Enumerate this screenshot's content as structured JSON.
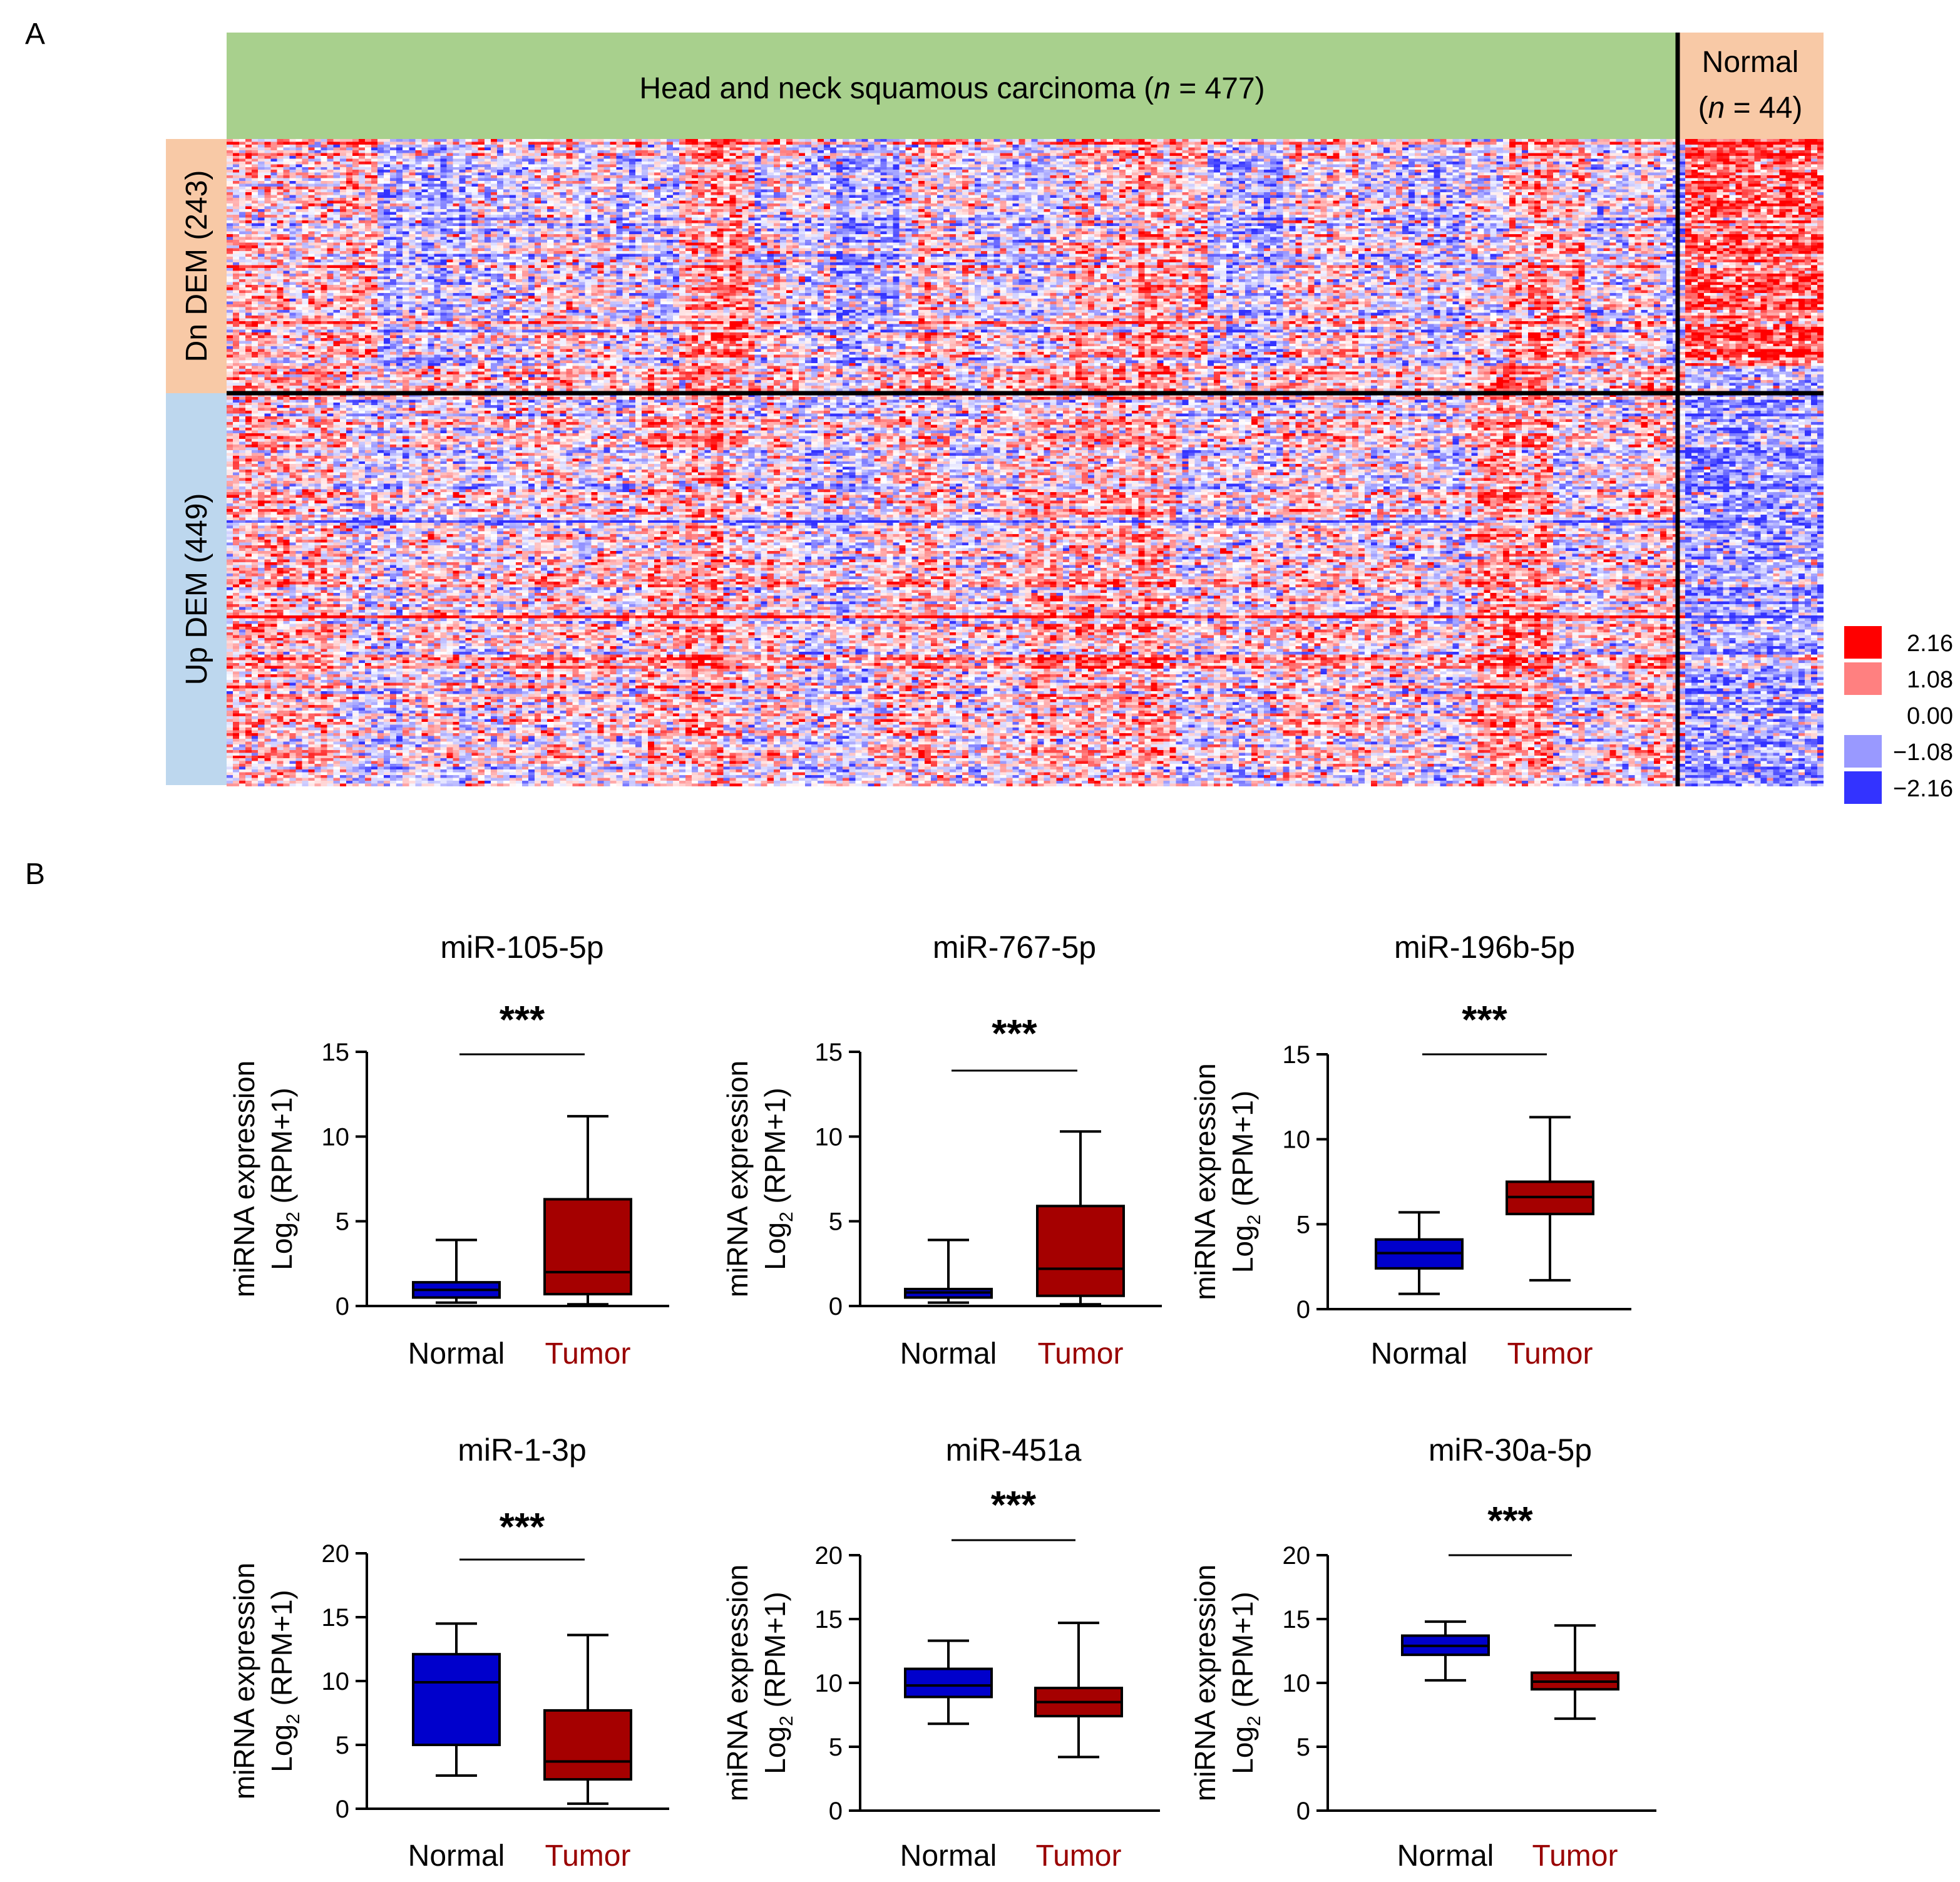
{
  "colors": {
    "tumor_band": "#a8d08d",
    "normal_band": "#f8c9a6",
    "dn_band": "#f8c9a6",
    "up_band": "#bdd7ee",
    "high": "#ff0000",
    "mid_high": "#ff8080",
    "zero": "#ffffff",
    "mid_low": "#9999ff",
    "low": "#3333ff",
    "box_normal": "#0000cc",
    "box_tumor": "#a50000",
    "tumor_label": "#990000",
    "divider": "#000000"
  },
  "panels": {
    "a_label": "A",
    "b_label": "B"
  },
  "chart_data": [
    {
      "type": "heatmap",
      "panel": "A",
      "groups": [
        {
          "name": "Head and neck squamous carcinoma",
          "n_prefix": "n",
          "n_value": "= 477"
        },
        {
          "name": "Normal",
          "n_prefix": "n",
          "n_value": "= 44"
        }
      ],
      "row_groups": [
        {
          "label": "Dn DEM (243)",
          "count": 243
        },
        {
          "label": "Up DEM (449)",
          "count": 449
        }
      ],
      "legend": {
        "values": [
          "2.16",
          "1.08",
          "0.00",
          "−1.08",
          "−2.16"
        ],
        "range": [
          -2.16,
          2.16
        ]
      }
    },
    {
      "type": "box",
      "panel": "B",
      "title": "miR-105-5p",
      "significance": "***",
      "ylabel_line1": "miRNA expression",
      "ylabel_pre": "Log",
      "ylabel_sub": "2",
      "ylabel_post": " (RPM+1)",
      "yticks": [
        0,
        5,
        10,
        15
      ],
      "ylim": [
        0,
        15
      ],
      "categories": [
        "Normal",
        "Tumor"
      ],
      "boxes": [
        {
          "name": "Normal",
          "min": 0.2,
          "q1": 0.5,
          "median": 0.95,
          "q3": 1.4,
          "max": 3.9
        },
        {
          "name": "Tumor",
          "min": 0.1,
          "q1": 0.7,
          "median": 2.0,
          "q3": 6.3,
          "max": 11.2
        }
      ]
    },
    {
      "type": "box",
      "panel": "B",
      "title": "miR-767-5p",
      "significance": "***",
      "ylabel_line1": "miRNA expression",
      "ylabel_pre": "Log",
      "ylabel_sub": "2",
      "ylabel_post": " (RPM+1)",
      "yticks": [
        0,
        5,
        10,
        15
      ],
      "ylim": [
        0,
        15
      ],
      "categories": [
        "Normal",
        "Tumor"
      ],
      "boxes": [
        {
          "name": "Normal",
          "min": 0.2,
          "q1": 0.5,
          "median": 0.8,
          "q3": 1.0,
          "max": 3.9
        },
        {
          "name": "Tumor",
          "min": 0.1,
          "q1": 0.6,
          "median": 2.2,
          "q3": 5.9,
          "max": 10.3
        }
      ]
    },
    {
      "type": "box",
      "panel": "B",
      "title": "miR-196b-5p",
      "significance": "***",
      "ylabel_line1": "miRNA expression",
      "ylabel_pre": "Log",
      "ylabel_sub": "2",
      "ylabel_post": " (RPM+1)",
      "yticks": [
        0,
        5,
        10,
        15
      ],
      "ylim": [
        0,
        15
      ],
      "categories": [
        "Normal",
        "Tumor"
      ],
      "boxes": [
        {
          "name": "Normal",
          "min": 0.9,
          "q1": 2.4,
          "median": 3.3,
          "q3": 4.1,
          "max": 5.7
        },
        {
          "name": "Tumor",
          "min": 1.7,
          "q1": 5.6,
          "median": 6.6,
          "q3": 7.5,
          "max": 11.3
        }
      ]
    },
    {
      "type": "box",
      "panel": "B",
      "title": "miR-1-3p",
      "significance": "***",
      "ylabel_line1": "miRNA expression",
      "ylabel_pre": "Log",
      "ylabel_sub": "2",
      "ylabel_post": " (RPM+1)",
      "yticks": [
        0,
        5,
        10,
        15,
        20
      ],
      "ylim": [
        0,
        20
      ],
      "categories": [
        "Normal",
        "Tumor"
      ],
      "boxes": [
        {
          "name": "Normal",
          "min": 2.6,
          "q1": 5.0,
          "median": 9.9,
          "q3": 12.1,
          "max": 14.5
        },
        {
          "name": "Tumor",
          "min": 0.4,
          "q1": 2.3,
          "median": 3.7,
          "q3": 7.7,
          "max": 13.6
        }
      ]
    },
    {
      "type": "box",
      "panel": "B",
      "title": "miR-451a",
      "significance": "***",
      "ylabel_line1": "miRNA expression",
      "ylabel_pre": "Log",
      "ylabel_sub": "2",
      "ylabel_post": " (RPM+1)",
      "yticks": [
        0,
        5,
        10,
        15,
        20
      ],
      "ylim": [
        0,
        20
      ],
      "categories": [
        "Normal",
        "Tumor"
      ],
      "boxes": [
        {
          "name": "Normal",
          "min": 6.8,
          "q1": 8.9,
          "median": 9.8,
          "q3": 11.1,
          "max": 13.3
        },
        {
          "name": "Tumor",
          "min": 4.2,
          "q1": 7.4,
          "median": 8.5,
          "q3": 9.6,
          "max": 14.7
        }
      ]
    },
    {
      "type": "box",
      "panel": "B",
      "title": "miR-30a-5p",
      "significance": "***",
      "ylabel_line1": "miRNA expression",
      "ylabel_pre": "Log",
      "ylabel_sub": "2",
      "ylabel_post": " (RPM+1)",
      "yticks": [
        0,
        5,
        10,
        15,
        20
      ],
      "ylim": [
        0,
        20
      ],
      "categories": [
        "Normal",
        "Tumor"
      ],
      "boxes": [
        {
          "name": "Normal",
          "min": 10.2,
          "q1": 12.2,
          "median": 12.9,
          "q3": 13.7,
          "max": 14.8
        },
        {
          "name": "Tumor",
          "min": 7.2,
          "q1": 9.5,
          "median": 10.1,
          "q3": 10.8,
          "max": 14.5
        }
      ]
    }
  ]
}
